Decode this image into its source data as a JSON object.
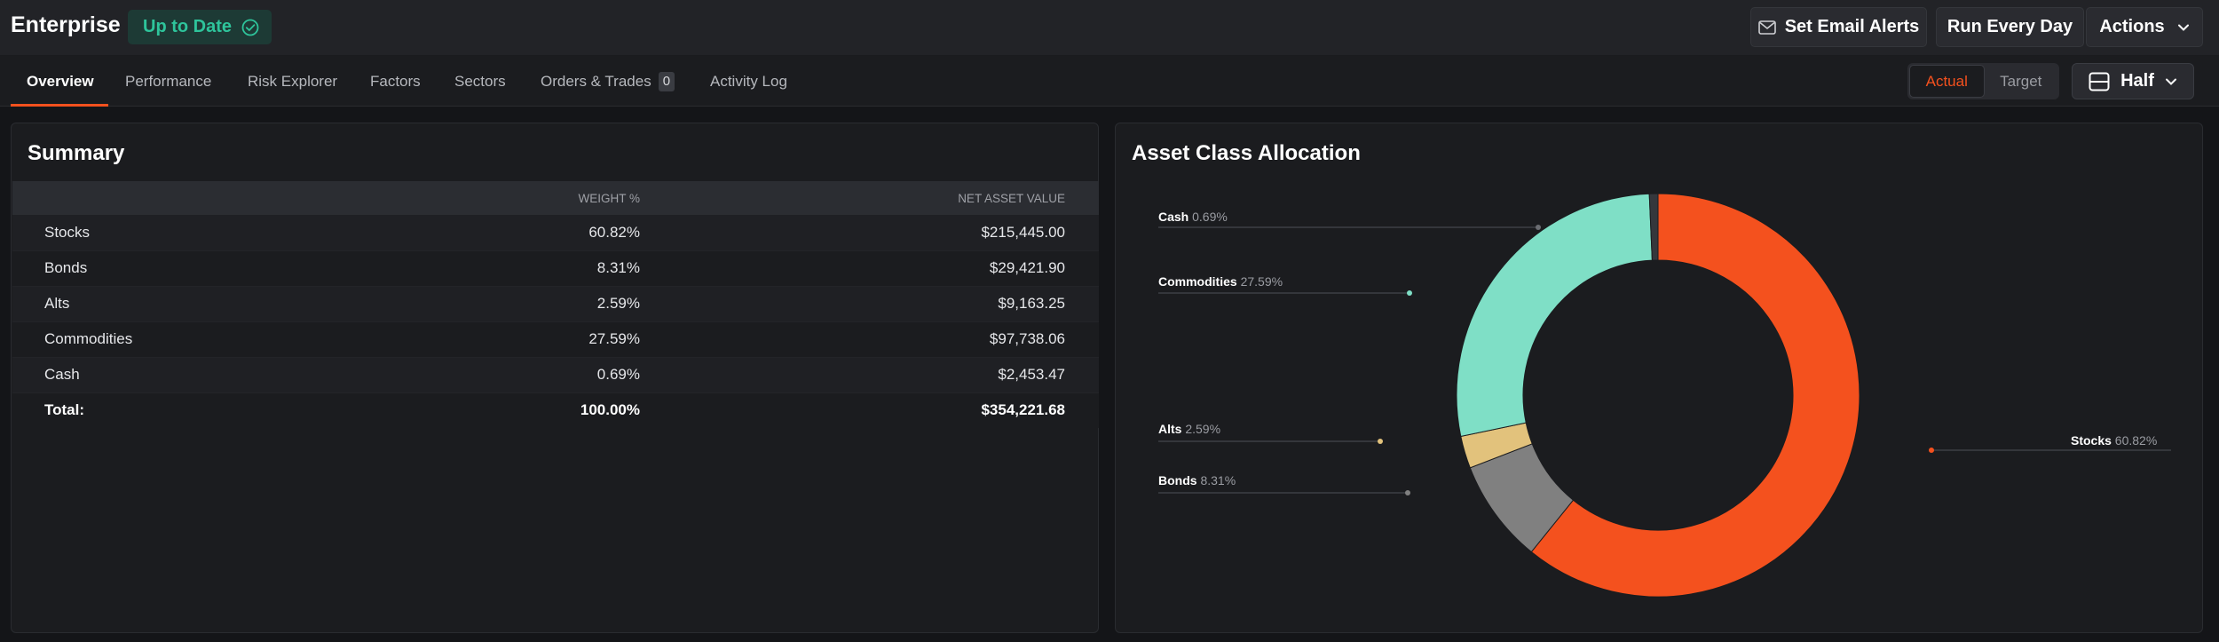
{
  "header": {
    "title": "Enterprise",
    "status": "Up to Date",
    "email_alerts": "Set Email Alerts",
    "run_schedule": "Run Every Day",
    "actions": "Actions"
  },
  "tabs": [
    {
      "label": "Overview"
    },
    {
      "label": "Performance"
    },
    {
      "label": "Risk Explorer"
    },
    {
      "label": "Factors"
    },
    {
      "label": "Sectors"
    },
    {
      "label": "Orders & Trades",
      "badge": "0"
    },
    {
      "label": "Activity Log"
    }
  ],
  "view_toggle": {
    "actual": "Actual",
    "target": "Target"
  },
  "layout_select": {
    "label": "Half"
  },
  "summary": {
    "title": "Summary",
    "columns": [
      "",
      "WEIGHT %",
      "NET ASSET VALUE"
    ],
    "rows": [
      {
        "name": "Stocks",
        "weight": "60.82%",
        "nav": "$215,445.00"
      },
      {
        "name": "Bonds",
        "weight": "8.31%",
        "nav": "$29,421.90"
      },
      {
        "name": "Alts",
        "weight": "2.59%",
        "nav": "$9,163.25"
      },
      {
        "name": "Commodities",
        "weight": "27.59%",
        "nav": "$97,738.06"
      },
      {
        "name": "Cash",
        "weight": "0.69%",
        "nav": "$2,453.47"
      }
    ],
    "total": {
      "name": "Total:",
      "weight": "100.00%",
      "nav": "$354,221.68"
    }
  },
  "allocation": {
    "title": "Asset Class Allocation"
  },
  "chart_data": {
    "type": "pie",
    "title": "Asset Class Allocation",
    "categories": [
      "Stocks",
      "Bonds",
      "Alts",
      "Commodities",
      "Cash"
    ],
    "values": [
      60.82,
      8.31,
      2.59,
      27.59,
      0.69
    ],
    "value_labels": [
      "60.82%",
      "8.31%",
      "2.59%",
      "27.59%",
      "0.69%"
    ],
    "colors": [
      "#f4511e",
      "#808080",
      "#e2c27c",
      "#7fdfc6",
      "#35373c"
    ],
    "donut": true
  },
  "colors": {
    "accent": "#f4511e",
    "status": "#2ec49b"
  }
}
